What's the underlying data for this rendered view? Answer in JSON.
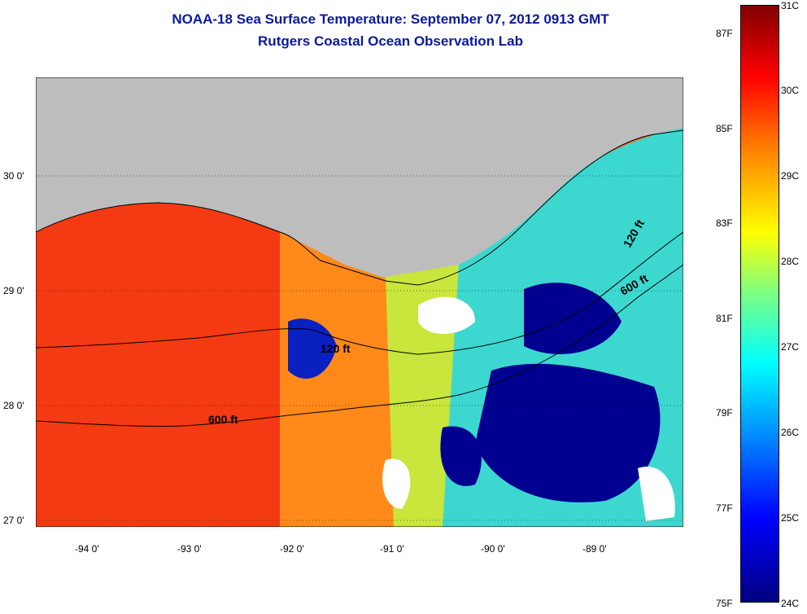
{
  "title": "NOAA-18 Sea Surface Temperature:  September 07, 2012 0913 GMT",
  "subtitle": "Rutgers Coastal Ocean Observation Lab",
  "map": {
    "lat_labels": [
      "30 0'",
      "29 0'",
      "28 0'",
      "27 0'"
    ],
    "lon_labels": [
      "-94 0'",
      "-93 0'",
      "-92 0'",
      "-91 0'",
      "-90 0'",
      "-89 0'"
    ],
    "contour_labels": [
      "120 ft",
      "600 ft",
      "120 ft",
      "600 ft"
    ]
  },
  "colorbar": {
    "celsius_labels": [
      "31C",
      "30C",
      "29C",
      "28C",
      "27C",
      "26C",
      "25C",
      "24C"
    ],
    "fahrenheit_labels": [
      "87F",
      "85F",
      "83F",
      "81F",
      "79F",
      "77F",
      "75F"
    ],
    "colors": [
      "#000080",
      "#0000ff",
      "#00a0ff",
      "#00ffff",
      "#7fff80",
      "#ffff00",
      "#ff8000",
      "#ff0000",
      "#800000"
    ]
  }
}
